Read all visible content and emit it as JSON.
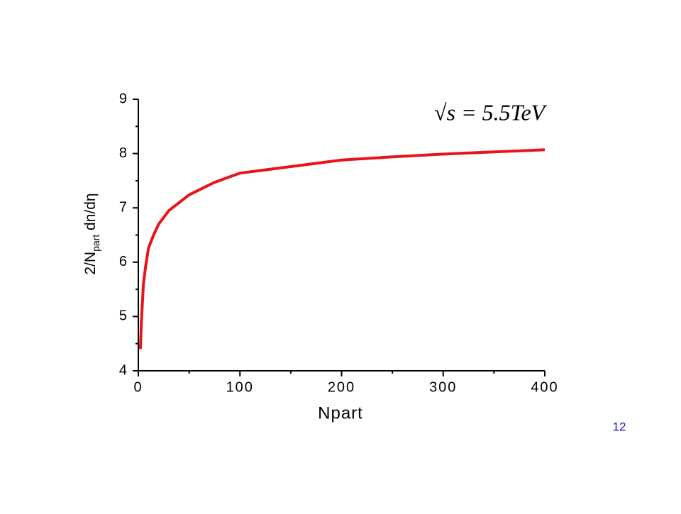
{
  "chart_data": {
    "type": "line",
    "xlabel": "Npart",
    "ylabel": {
      "main": "2/N",
      "sub": "part",
      "rest": " dn/dη"
    },
    "annotation": "√s = 5.5TeV",
    "x": [
      2,
      3,
      5,
      7,
      10,
      15,
      20,
      30,
      50,
      75,
      100,
      150,
      200,
      250,
      300,
      350,
      400
    ],
    "series": [
      {
        "color": "#e8141b",
        "values": [
          4.4,
          4.9,
          5.6,
          5.9,
          6.26,
          6.5,
          6.7,
          6.95,
          7.24,
          7.47,
          7.64,
          7.76,
          7.88,
          7.94,
          7.99,
          8.03,
          8.07
        ]
      }
    ],
    "xlim": [
      0,
      400
    ],
    "xticks": [
      0,
      100,
      200,
      300,
      400
    ],
    "x_minor_ticks": [
      50,
      150,
      250,
      350
    ],
    "ylim": [
      4,
      9
    ],
    "yticks": [
      4,
      5,
      6,
      7,
      8,
      9
    ],
    "y_minor_ticks": [
      4.5,
      5.5,
      6.5,
      7.5,
      8.5
    ]
  },
  "page_number": "12"
}
